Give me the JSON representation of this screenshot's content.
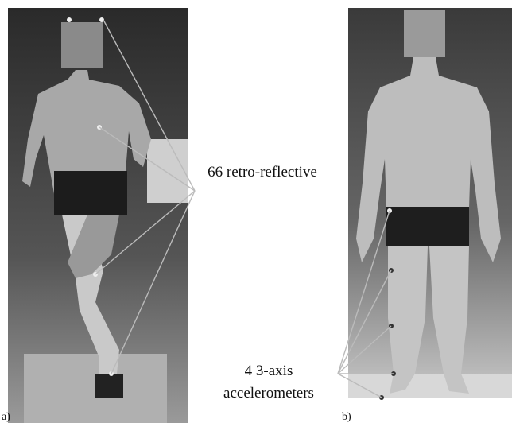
{
  "annotations": {
    "markers": "66 retro-reflective",
    "accelerometers": [
      "4 3-axis",
      "accelerometers"
    ]
  },
  "panels": [
    "a)",
    "b)"
  ]
}
